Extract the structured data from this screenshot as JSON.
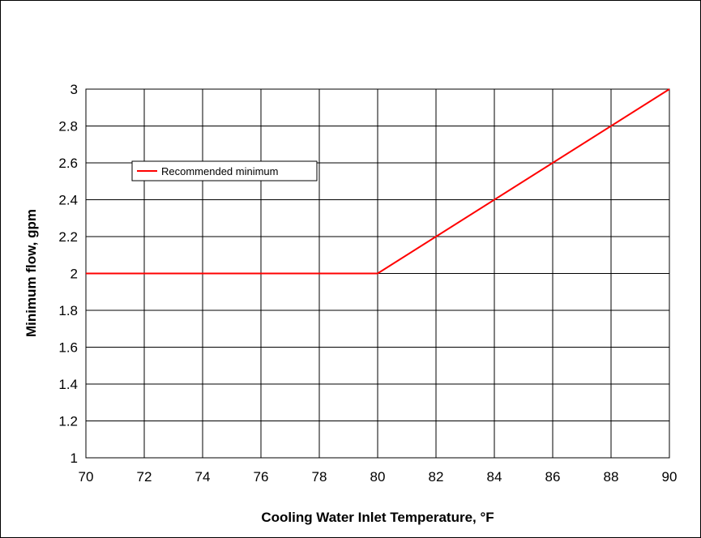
{
  "chart_data": {
    "type": "line",
    "title": "",
    "xlabel": "Cooling Water Inlet Temperature, °F",
    "ylabel": "Minimum flow, gpm",
    "xlim": [
      70,
      90
    ],
    "ylim": [
      1,
      3
    ],
    "x_ticks": [
      70,
      72,
      74,
      76,
      78,
      80,
      82,
      84,
      86,
      88,
      90
    ],
    "y_ticks": [
      1,
      1.2,
      1.4,
      1.6,
      1.8,
      2,
      2.2,
      2.4,
      2.6,
      2.8,
      3
    ],
    "x_tick_labels": [
      "70",
      "72",
      "74",
      "76",
      "78",
      "80",
      "82",
      "84",
      "86",
      "88",
      "90"
    ],
    "y_tick_labels": [
      "1",
      "1.2",
      "1.4",
      "1.6",
      "1.8",
      "2",
      "2.2",
      "2.4",
      "2.6",
      "2.8",
      "3"
    ],
    "grid": true,
    "legend_position": "top-left",
    "series": [
      {
        "name": "Recommended minimum",
        "color": "#ff0000",
        "x": [
          70,
          80,
          90
        ],
        "y": [
          2,
          2,
          3
        ]
      }
    ]
  }
}
